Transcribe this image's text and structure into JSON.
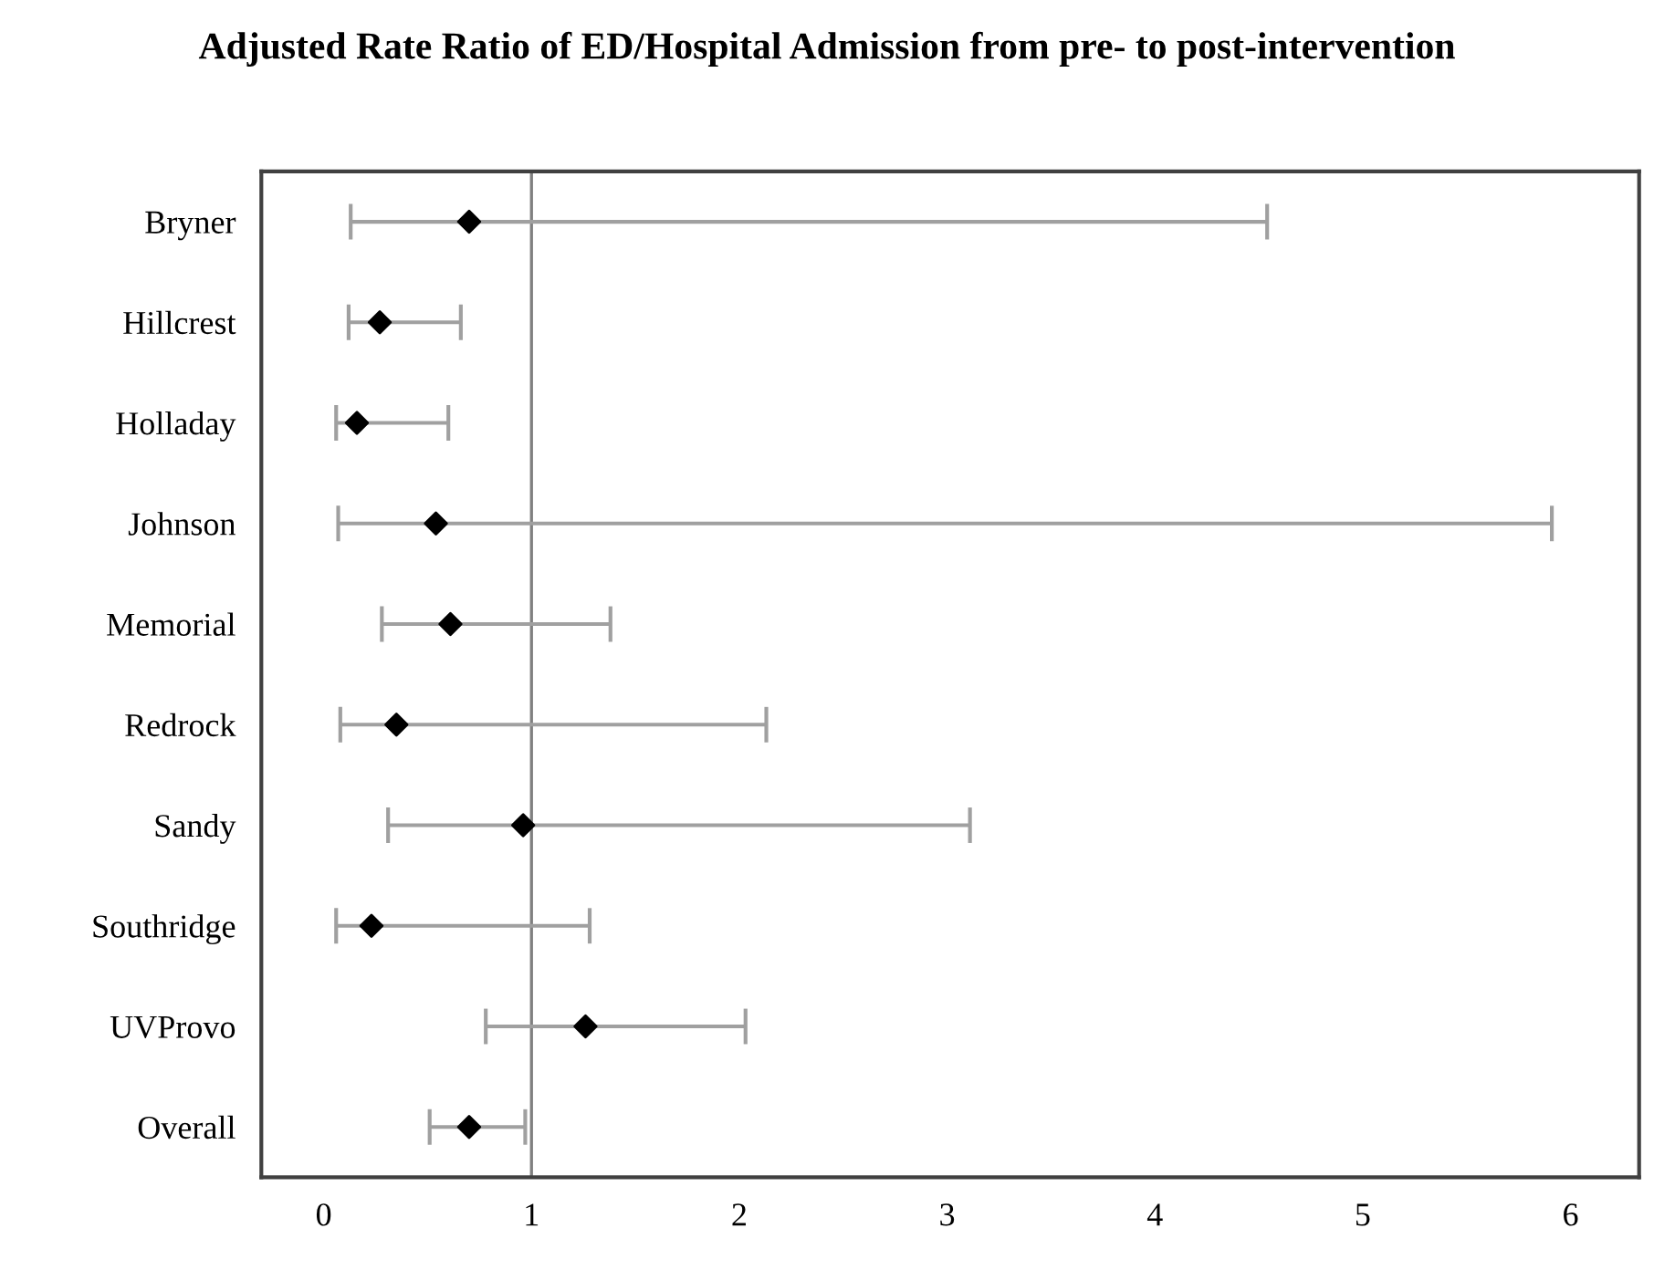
{
  "chart_data": {
    "type": "scatter",
    "orientation": "horizontal",
    "title": "Adjusted Rate Ratio of ED/Hospital Admission from pre- to post-intervention",
    "categories": [
      "Bryner",
      "Hillcrest",
      "Holladay",
      "Johnson",
      "Memorial",
      "Redrock",
      "Sandy",
      "Southridge",
      "UVProvo",
      "Overall"
    ],
    "series": [
      {
        "color": "#000000",
        "values": [
          0.7,
          0.27,
          0.16,
          0.54,
          0.61,
          0.35,
          0.96,
          0.23,
          1.26,
          0.7
        ],
        "errors": [
          [
            0.13,
            4.54
          ],
          [
            0.12,
            0.66
          ],
          [
            0.06,
            0.6
          ],
          [
            0.07,
            5.91
          ],
          [
            0.28,
            1.38
          ],
          [
            0.08,
            2.13
          ],
          [
            0.31,
            3.11
          ],
          [
            0.06,
            1.28
          ],
          [
            0.78,
            2.03
          ],
          [
            0.51,
            0.97
          ]
        ]
      }
    ],
    "xlim": [
      -0.3,
      6.33
    ],
    "xticks": [
      0,
      1,
      2,
      3,
      4,
      5,
      6
    ],
    "ref_lines": [
      {
        "axis": "x",
        "value": 1,
        "color": "#808080"
      }
    ],
    "marker": "diamond",
    "grid": false,
    "legend": false
  }
}
